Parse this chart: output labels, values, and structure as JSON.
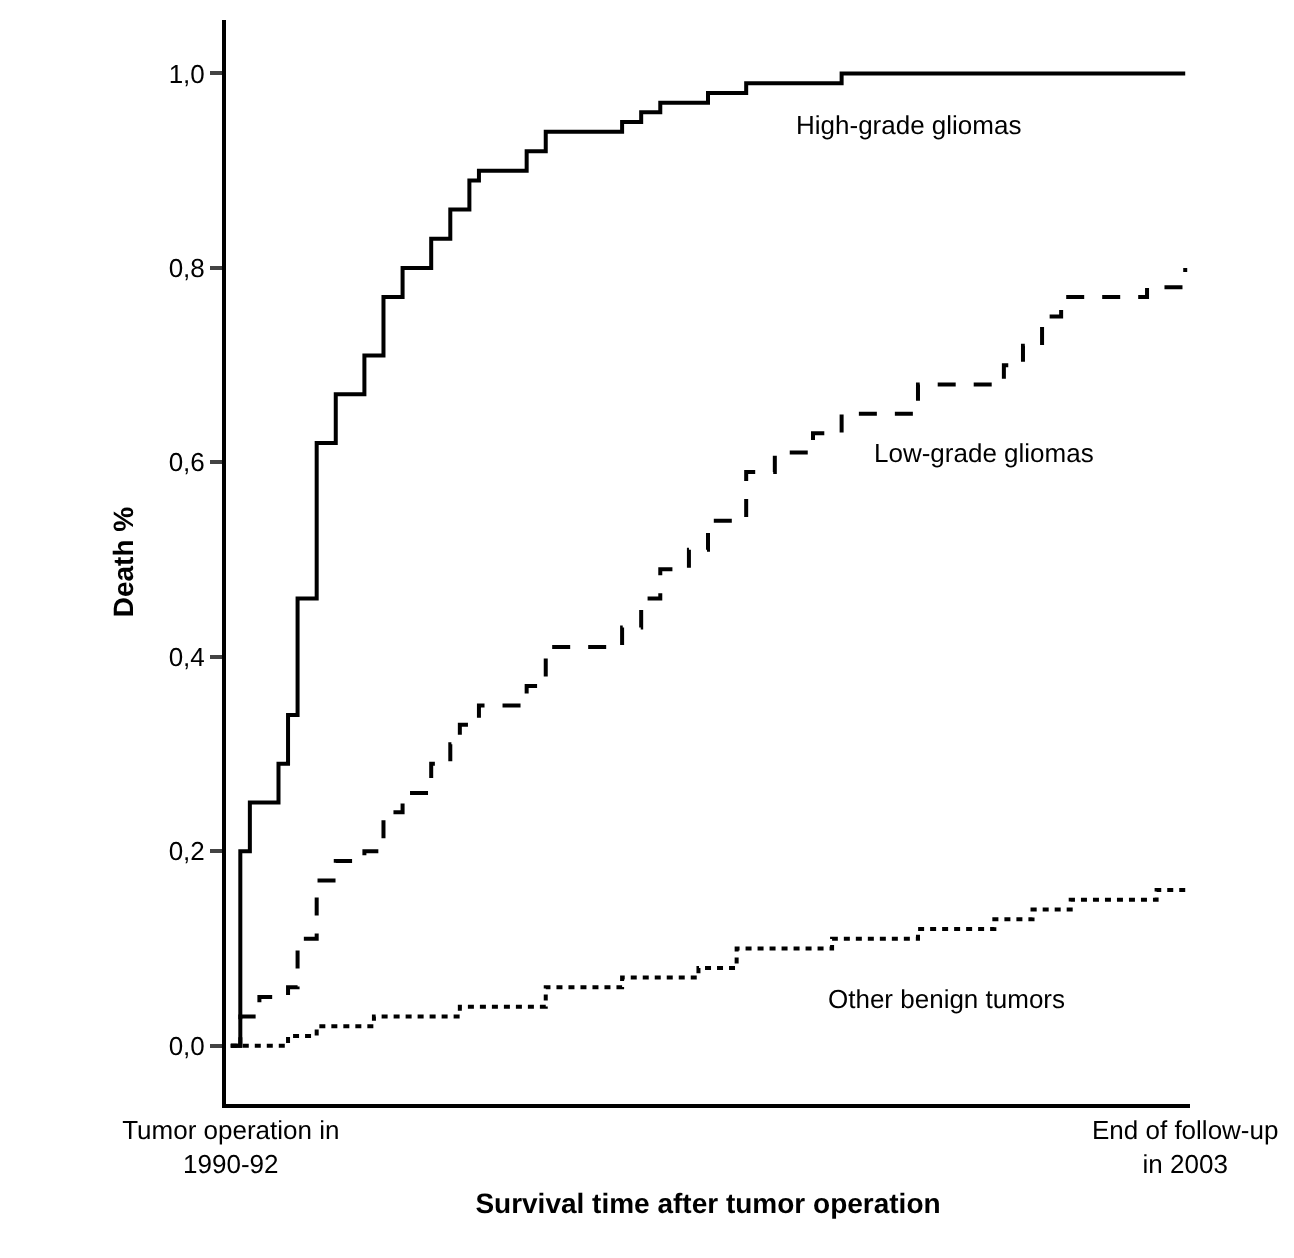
{
  "chart_data": {
    "type": "step",
    "xlabel": "Survival time after tumor operation",
    "ylabel": "Death %",
    "categories": [
      "Tumor operation in\n1990-92",
      null,
      null,
      null,
      null,
      null,
      null,
      null,
      null,
      null,
      null,
      null,
      null,
      null,
      null,
      null,
      null,
      null,
      null,
      null,
      null,
      null,
      null,
      null,
      null,
      null,
      null,
      null,
      null,
      null,
      null,
      null,
      null,
      null,
      null,
      null,
      null,
      null,
      null,
      null,
      null,
      null,
      null,
      null,
      null,
      null,
      null,
      null,
      null,
      null,
      null,
      null,
      null,
      null,
      null,
      null,
      null,
      null,
      null,
      null,
      null,
      null,
      null,
      null,
      null,
      null,
      null,
      null,
      null,
      null,
      null,
      null,
      null,
      null,
      null,
      null,
      null,
      null,
      null,
      null,
      null,
      null,
      null,
      null,
      null,
      null,
      null,
      null,
      null,
      null,
      null,
      null,
      null,
      null,
      null,
      null,
      null,
      null,
      null,
      null,
      "End of follow-up\nin 2003"
    ],
    "ylim": [
      -0.06,
      1.055
    ],
    "yticks": [
      {
        "value": 0,
        "label": "0,0"
      },
      {
        "value": 0.2,
        "label": "0,2"
      },
      {
        "value": 0.4,
        "label": "0,4"
      },
      {
        "value": 0.6,
        "label": "0,6"
      },
      {
        "value": 0.8,
        "label": "0,8"
      },
      {
        "value": 1,
        "label": "1,0"
      }
    ],
    "grid": false,
    "legend": false,
    "marker": "none",
    "series": [
      {
        "name": "High-grade gliomas",
        "color": "#000000",
        "line_style": "solid",
        "values": [
          0,
          0.2,
          0.25,
          0.25,
          0.25,
          0.29,
          0.34,
          0.46,
          0.46,
          0.62,
          0.62,
          0.67,
          0.67,
          0.67,
          0.71,
          0.71,
          0.77,
          0.77,
          0.8,
          0.8,
          0.8,
          0.83,
          0.83,
          0.86,
          0.86,
          0.89,
          0.9,
          0.9,
          0.9,
          0.9,
          0.9,
          0.92,
          0.92,
          0.94,
          0.94,
          0.94,
          0.94,
          0.94,
          0.94,
          0.94,
          0.94,
          0.95,
          0.95,
          0.96,
          0.96,
          0.97,
          0.97,
          0.97,
          0.97,
          0.97,
          0.98,
          0.98,
          0.98,
          0.98,
          0.99,
          0.99,
          0.99,
          0.99,
          0.99,
          0.99,
          0.99,
          0.99,
          0.99,
          0.99,
          1,
          1,
          1,
          1,
          1,
          1,
          1,
          1,
          1,
          1,
          1,
          1,
          1,
          1,
          1,
          1,
          1,
          1,
          1,
          1,
          1,
          1,
          1,
          1,
          1,
          1,
          1,
          1,
          1,
          1,
          1,
          1,
          1,
          1,
          1,
          1,
          1
        ]
      },
      {
        "name": "Low-grade gliomas",
        "color": "#000000",
        "line_style": "dashed",
        "values": [
          0,
          0.03,
          0.03,
          0.05,
          0.05,
          0.05,
          0.06,
          0.11,
          0.11,
          0.17,
          0.17,
          0.19,
          0.19,
          0.19,
          0.2,
          0.2,
          0.24,
          0.24,
          0.26,
          0.26,
          0.26,
          0.29,
          0.29,
          0.31,
          0.33,
          0.33,
          0.35,
          0.35,
          0.35,
          0.35,
          0.35,
          0.37,
          0.37,
          0.41,
          0.41,
          0.41,
          0.41,
          0.41,
          0.41,
          0.41,
          0.41,
          0.43,
          0.43,
          0.46,
          0.46,
          0.49,
          0.49,
          0.49,
          0.51,
          0.51,
          0.54,
          0.54,
          0.54,
          0.54,
          0.59,
          0.59,
          0.59,
          0.61,
          0.61,
          0.61,
          0.61,
          0.63,
          0.63,
          0.63,
          0.65,
          0.65,
          0.65,
          0.65,
          0.65,
          0.65,
          0.65,
          0.65,
          0.68,
          0.68,
          0.68,
          0.68,
          0.68,
          0.68,
          0.68,
          0.68,
          0.68,
          0.7,
          0.7,
          0.72,
          0.72,
          0.75,
          0.75,
          0.77,
          0.77,
          0.77,
          0.77,
          0.77,
          0.77,
          0.77,
          0.77,
          0.77,
          0.78,
          0.78,
          0.78,
          0.78,
          0.8
        ]
      },
      {
        "name": "Other benign tumors",
        "color": "#000000",
        "line_style": "dotted",
        "values": [
          0,
          0,
          0,
          0,
          0,
          0,
          0.01,
          0.01,
          0.01,
          0.02,
          0.02,
          0.02,
          0.02,
          0.02,
          0.02,
          0.03,
          0.03,
          0.03,
          0.03,
          0.03,
          0.03,
          0.03,
          0.03,
          0.03,
          0.04,
          0.04,
          0.04,
          0.04,
          0.04,
          0.04,
          0.04,
          0.04,
          0.04,
          0.06,
          0.06,
          0.06,
          0.06,
          0.06,
          0.06,
          0.06,
          0.06,
          0.07,
          0.07,
          0.07,
          0.07,
          0.07,
          0.07,
          0.07,
          0.07,
          0.08,
          0.08,
          0.08,
          0.08,
          0.1,
          0.1,
          0.1,
          0.1,
          0.1,
          0.1,
          0.1,
          0.1,
          0.1,
          0.1,
          0.11,
          0.11,
          0.11,
          0.11,
          0.11,
          0.11,
          0.11,
          0.11,
          0.11,
          0.12,
          0.12,
          0.12,
          0.12,
          0.12,
          0.12,
          0.12,
          0.12,
          0.13,
          0.13,
          0.13,
          0.13,
          0.14,
          0.14,
          0.14,
          0.14,
          0.15,
          0.15,
          0.15,
          0.15,
          0.15,
          0.15,
          0.15,
          0.15,
          0.15,
          0.16,
          0.16,
          0.16,
          0.16
        ]
      }
    ]
  }
}
